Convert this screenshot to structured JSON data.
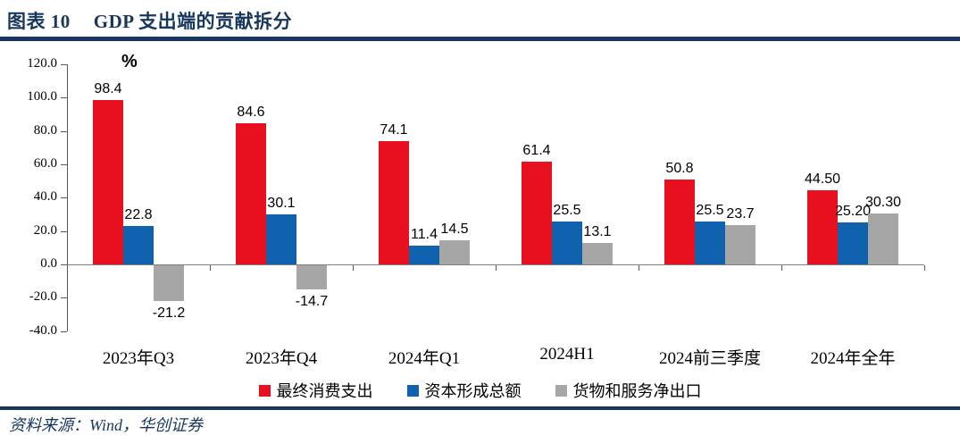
{
  "header": {
    "figure_label": "图表 10",
    "title": "GDP 支出端的贡献拆分"
  },
  "chart_data": {
    "type": "bar",
    "title": "GDP 支出端的贡献拆分",
    "unit_label": "%",
    "categories": [
      "2023年Q3",
      "2023年Q4",
      "2024年Q1",
      "2024H1",
      "2024前三季度",
      "2024年全年"
    ],
    "series": [
      {
        "name": "最终消费支出",
        "color": "#E8101E",
        "values": [
          98.4,
          84.6,
          74.1,
          61.4,
          50.8,
          44.5
        ],
        "labels": [
          "98.4",
          "84.6",
          "74.1",
          "61.4",
          "50.8",
          "44.50"
        ]
      },
      {
        "name": "资本形成总额",
        "color": "#1062AE",
        "values": [
          22.8,
          30.1,
          11.4,
          25.5,
          25.5,
          25.2
        ],
        "labels": [
          "22.8",
          "30.1",
          "11.4",
          "25.5",
          "25.5",
          "25.20"
        ]
      },
      {
        "name": "货物和服务净出口",
        "color": "#A6A6A6",
        "values": [
          -21.2,
          -14.7,
          14.5,
          13.1,
          23.7,
          30.3
        ],
        "labels": [
          "-21.2",
          "-14.7",
          "14.5",
          "13.1",
          "23.7",
          "30.30"
        ]
      }
    ],
    "y_axis": {
      "min": -40,
      "max": 120,
      "step": 20,
      "tick_labels": [
        "120.0",
        "100.0",
        "80.0",
        "60.0",
        "40.0",
        "20.0",
        "0.0",
        "-20.0",
        "-40.0"
      ]
    },
    "ylim": [
      -40,
      120
    ],
    "grid": false,
    "legend_position": "bottom"
  },
  "footer": {
    "source": "资料来源：Wind，华创证券"
  },
  "colors": {
    "navy": "#17375E",
    "red": "#E8101E",
    "blue": "#1062AE",
    "gray": "#A6A6A6",
    "axis": "#595959"
  }
}
